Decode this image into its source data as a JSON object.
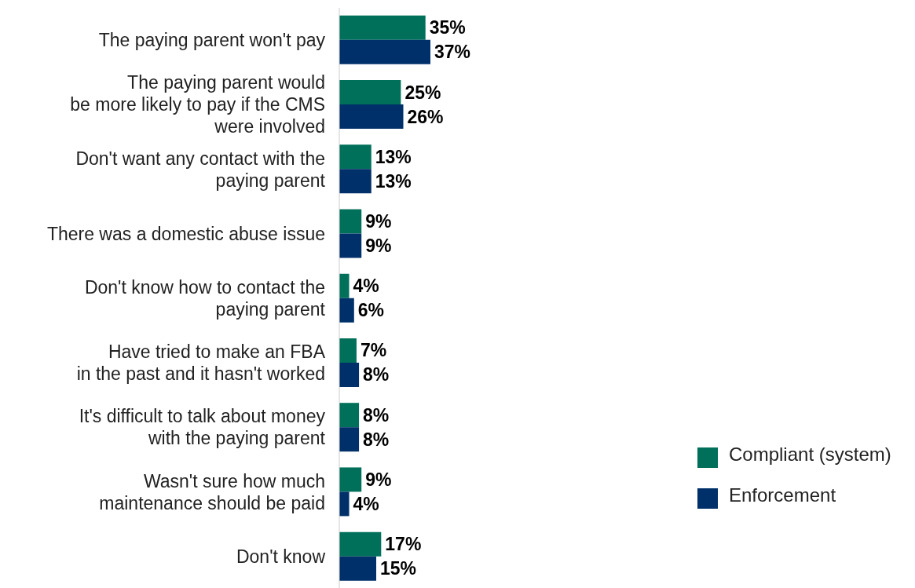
{
  "chart_data": {
    "type": "bar",
    "orientation": "horizontal",
    "categories": [
      "The paying parent won't pay",
      "The paying parent would\nbe more likely to pay if the CMS\nwere involved",
      "Don't want any contact with the\npaying parent",
      "There was a domestic abuse issue",
      "Don't know how to contact the\npaying parent",
      "Have tried to make an FBA\nin the past and it hasn't worked",
      "It's difficult to talk about money\nwith the paying parent",
      "Wasn't sure how much\nmaintenance should be paid",
      "Don't know"
    ],
    "series": [
      {
        "name": "Compliant (system)",
        "color": "#00705a",
        "values": [
          35,
          25,
          13,
          9,
          4,
          7,
          8,
          9,
          17
        ],
        "value_labels": [
          "35%",
          "25%",
          "13%",
          "9%",
          "4%",
          "7%",
          "8%",
          "9%",
          "17%"
        ]
      },
      {
        "name": "Enforcement",
        "color": "#003069",
        "values": [
          37,
          26,
          13,
          9,
          6,
          8,
          8,
          4,
          15
        ],
        "value_labels": [
          "37%",
          "26%",
          "13%",
          "9%",
          "6%",
          "8%",
          "8%",
          "4%",
          "15%"
        ]
      }
    ],
    "legend": "right",
    "grid": false
  }
}
